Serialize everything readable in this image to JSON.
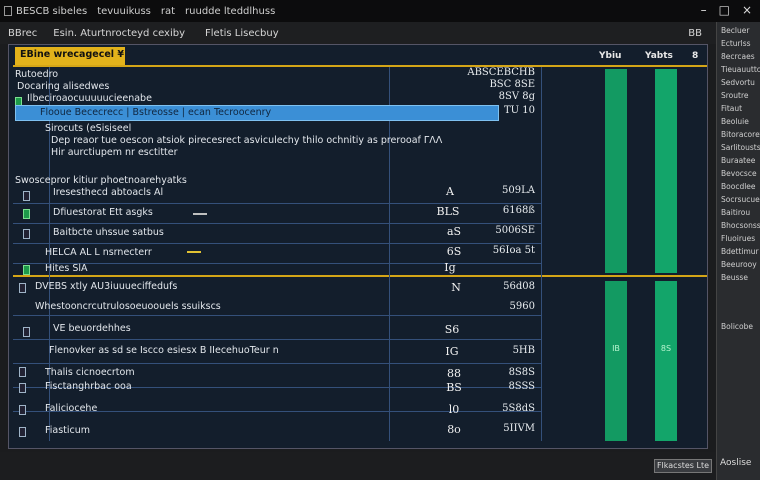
{
  "window": {
    "title_parts": [
      "BESCB sibeles",
      "tevuuikuss",
      "rat",
      "ruudde lteddlhuss"
    ],
    "controls": [
      "–",
      "□",
      "×"
    ]
  },
  "menu": {
    "items": [
      "BBrec",
      "Esin. Aturtnrocteyd cexiby",
      "Fletis Lisecbuy"
    ],
    "right": "BB"
  },
  "panel": {
    "tab_label": "EBine wrecagecel ¥",
    "right_headers": [
      "Ybiu",
      "Yabts",
      "8"
    ],
    "header_value": "ABSCEBCHB",
    "header_value2": "BSC 8SE",
    "header_value3": "8SV 8g",
    "rows": [
      {
        "text": "Rutoedro",
        "indent": 0
      },
      {
        "text": "Docaring alisedwes",
        "indent": 1
      },
      {
        "text": "Ilbeciroaocuuuuucieenabe",
        "indent": 2
      }
    ],
    "selected_row": "Flooue Bececrecc | Bstreosse | ecan Tecroocenry",
    "selected_value": "TU 10",
    "desc_lines": [
      "Sirocuts (eSisiseel",
      "Dep reaor tue oescon atsiok pirecesrect asviculechy thilo ochnitiy as prerooaf ΓΛΛ",
      "Hir aurctiupem nr esctitter"
    ],
    "section1": "Swoscepror kitiur phoetnoarehyatks",
    "group1": [
      {
        "label": "Iresesthecd abtoacls Al",
        "sym": "A",
        "value": "509LA"
      },
      {
        "label": "Dfiuestorat Ett asgks",
        "sym": "BLS",
        "value": "6168ß"
      },
      {
        "label": "Baitbcte uhssue satbus",
        "sym": "aS",
        "value": "5006SE"
      },
      {
        "label": "HELCA AL L nsrnecterr",
        "sym": "6S",
        "value": "56Ioa 5t"
      },
      {
        "label": "Hites SlA",
        "sym": "Ig",
        "value": "56ISS"
      }
    ],
    "section2": "DVEBS xtly AU3iuuueciffedufs",
    "group2": [
      {
        "label": "Whestooncrcutrulosoeuoouels ssuikscs",
        "sym": "N",
        "value": "56d08"
      },
      {
        "label": "VE beuordehhes",
        "sym": "S6",
        "value": "5960"
      },
      {
        "label": "Flenovker as sd se Iscco esiesx B IIecehuoTeur n",
        "sym": "IG",
        "value": "5HB"
      },
      {
        "label": "Thalis cicnoecrtom",
        "sym": "88",
        "value": "8S8S"
      },
      {
        "label": "Fisctanghrbac ooa",
        "sym": "BS",
        "value": "8SSS"
      },
      {
        "label": "Faliciocehe",
        "sym": "l0",
        "value": "5S8dS"
      },
      {
        "label": "Fiasticum",
        "sym": "8o",
        "value": "5IIVM"
      }
    ],
    "bar_labels": [
      "IB",
      "8S"
    ]
  },
  "side": {
    "items": [
      "Becluer",
      "Ecturlss",
      "8ecrcaes",
      "Tieuauuttcy",
      "Sedvortu",
      "Sroutre",
      "Fitaut",
      "Beoluie",
      "Bitoracoretsst",
      "Sarlitoustsoehe",
      "Buraatee",
      "Bevocsce",
      "Boocdlee",
      "Socrsucues",
      "Baitirou",
      "Bhocsonss",
      "Fluoirues",
      "Bdettimur",
      "Beeurooy",
      "Beusse"
    ],
    "footer": "Bolicobe"
  },
  "status": {
    "button": "Flkacstes Lte",
    "footer_right": "Aoslise"
  },
  "colors": {
    "accent_yellow": "#e2b21b",
    "selection_blue": "#3b8fd6",
    "bar_green": "#139a62",
    "panel_bg": "#131e2c"
  }
}
